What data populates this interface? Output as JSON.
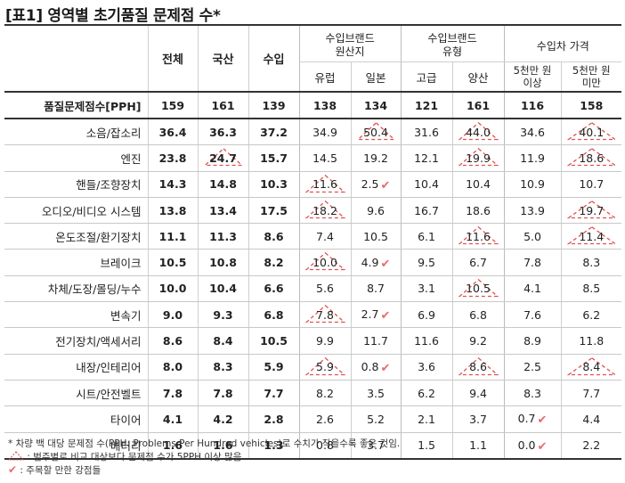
{
  "title": "[표1] 영역별 초기품질 문제점 수*",
  "headers": {
    "total": "전체",
    "domestic": "국산",
    "import": "수입",
    "group_origin": [
      "수입브랜드",
      "원산지"
    ],
    "group_type": [
      "수입브랜드",
      "유형"
    ],
    "group_price": "수입차 가격",
    "europe": "유럽",
    "japan": "일본",
    "premium": "고급",
    "mass": "양산",
    "price_high": [
      "5천만 원",
      "이상"
    ],
    "price_low": [
      "5천만 원",
      "미만"
    ]
  },
  "summary": {
    "label": "품질문제점수[PPH]",
    "values": [
      "159",
      "161",
      "139",
      "138",
      "134",
      "121",
      "161",
      "116",
      "158"
    ]
  },
  "rows": [
    {
      "label": "소음/잡소리",
      "values": [
        "36.4",
        "36.3",
        "37.2",
        "34.9",
        "50.4",
        "31.6",
        "44.0",
        "34.6",
        "40.1"
      ],
      "tri": [
        4,
        6,
        8
      ],
      "check": []
    },
    {
      "label": "엔진",
      "values": [
        "23.8",
        "24.7",
        "15.7",
        "14.5",
        "19.2",
        "12.1",
        "19.9",
        "11.9",
        "18.6"
      ],
      "tri": [
        1,
        6,
        8
      ],
      "check": []
    },
    {
      "label": "핸들/조향장치",
      "values": [
        "14.3",
        "14.8",
        "10.3",
        "11.6",
        "2.5",
        "10.4",
        "10.4",
        "10.9",
        "10.7"
      ],
      "tri": [
        3
      ],
      "check": [
        4
      ]
    },
    {
      "label": "오디오/비디오 시스템",
      "values": [
        "13.8",
        "13.4",
        "17.5",
        "18.2",
        "9.6",
        "16.7",
        "18.6",
        "13.9",
        "19.7"
      ],
      "tri": [
        3,
        8
      ],
      "check": []
    },
    {
      "label": "온도조절/환기장치",
      "values": [
        "11.1",
        "11.3",
        "8.6",
        "7.4",
        "10.5",
        "6.1",
        "11.6",
        "5.0",
        "11.4"
      ],
      "tri": [
        6,
        8
      ],
      "check": []
    },
    {
      "label": "브레이크",
      "values": [
        "10.5",
        "10.8",
        "8.2",
        "10.0",
        "4.9",
        "9.5",
        "6.7",
        "7.8",
        "8.3"
      ],
      "tri": [
        3
      ],
      "check": [
        4
      ]
    },
    {
      "label": "차체/도장/몰딩/누수",
      "values": [
        "10.0",
        "10.4",
        "6.6",
        "5.6",
        "8.7",
        "3.1",
        "10.5",
        "4.1",
        "8.5"
      ],
      "tri": [
        6
      ],
      "check": []
    },
    {
      "label": "변속기",
      "values": [
        "9.0",
        "9.3",
        "6.8",
        "7.8",
        "2.7",
        "6.9",
        "6.8",
        "7.6",
        "6.2"
      ],
      "tri": [
        3
      ],
      "check": [
        4
      ]
    },
    {
      "label": "전기장치/액세서리",
      "values": [
        "8.6",
        "8.4",
        "10.5",
        "9.9",
        "11.7",
        "11.6",
        "9.2",
        "8.9",
        "11.8"
      ],
      "tri": [],
      "check": []
    },
    {
      "label": "내장/인테리어",
      "values": [
        "8.0",
        "8.3",
        "5.9",
        "5.9",
        "0.8",
        "3.6",
        "8.6",
        "2.5",
        "8.4"
      ],
      "tri": [
        3,
        6,
        8
      ],
      "check": [
        4
      ]
    },
    {
      "label": "시트/안전벨트",
      "values": [
        "7.8",
        "7.8",
        "7.7",
        "8.2",
        "3.5",
        "6.2",
        "9.4",
        "8.3",
        "7.7"
      ],
      "tri": [],
      "check": []
    },
    {
      "label": "타이어",
      "values": [
        "4.1",
        "4.2",
        "2.8",
        "2.6",
        "5.2",
        "2.1",
        "3.7",
        "0.7",
        "4.4"
      ],
      "tri": [],
      "check": [
        7
      ]
    },
    {
      "label": "배터리",
      "values": [
        "1.6",
        "1.6",
        "1.3",
        "0.8",
        "3.7",
        "1.5",
        "1.1",
        "0.0",
        "2.2"
      ],
      "tri": [],
      "check": [
        7
      ]
    }
  ],
  "footnotes": {
    "note1": "* 차량 백 대당 문제점 수(PPH: Problems Per Hundred vehicles)로 수치가 작을수록 좋은 것임.",
    "note2": ": 범주별로 비교 대상보다 문제점 수가 5PPH 이상 많음",
    "note3": ": 주목할 만한 강점들"
  },
  "icons": {
    "triangle": "dashed-warning-triangle-icon",
    "check": "check-mark-icon"
  },
  "colors": {
    "triangle": "#e05050",
    "check": "#e96b6b",
    "rule": "#333333"
  }
}
